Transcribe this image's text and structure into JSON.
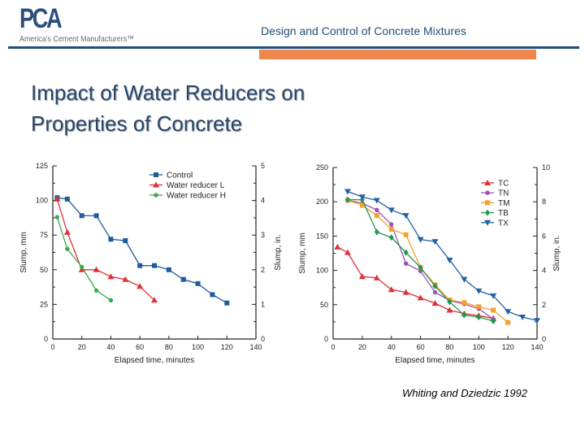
{
  "header": {
    "logo_text": "PCA",
    "logo_tagline": "America's Cement Manufacturers™",
    "title": "Design and Control of Concrete Mixtures",
    "colors": {
      "rule": "#1f4e79",
      "accent_bar": "#f0854d"
    }
  },
  "slide": {
    "title_line1": "Impact of Water Reducers on",
    "title_line2": "Properties of Concrete",
    "credit": "Whiting and Dziedzic 1992"
  },
  "chart_data": [
    {
      "type": "line",
      "xlabel": "Elapsed time, minutes",
      "ylabel": "Slump, mm",
      "y2label": "Slump, in.",
      "xlim": [
        0,
        140
      ],
      "ylim": [
        0,
        125
      ],
      "y2lim": [
        0,
        5
      ],
      "xticks": [
        "0",
        "20",
        "40",
        "60",
        "80",
        "100",
        "120",
        "140"
      ],
      "yticks": [
        "0",
        "25",
        "50",
        "75",
        "100",
        "125"
      ],
      "y2ticks": [
        "0",
        "1",
        "2",
        "3",
        "4",
        "5"
      ],
      "grid": false,
      "legend": "top-right",
      "series": [
        {
          "name": "Control",
          "color": "#1f5c9c",
          "marker": "square",
          "x": [
            3,
            10,
            20,
            30,
            40,
            50,
            60,
            70,
            80,
            90,
            100,
            110,
            120
          ],
          "y": [
            102,
            101,
            89,
            89,
            72,
            71,
            53,
            53,
            50,
            43,
            40,
            32,
            26
          ]
        },
        {
          "name": "Water reducer L",
          "color": "#e0303a",
          "marker": "triangle-up",
          "x": [
            3,
            10,
            20,
            30,
            40,
            50,
            60,
            70
          ],
          "y": [
            101,
            77,
            50,
            50,
            45,
            43,
            38,
            28
          ]
        },
        {
          "name": "Water reducer H",
          "color": "#3caa4a",
          "marker": "circle",
          "x": [
            3,
            10,
            20,
            30,
            40
          ],
          "y": [
            88,
            65,
            52,
            35,
            28
          ]
        }
      ]
    },
    {
      "type": "line",
      "xlabel": "Elapsed time, minutes",
      "ylabel": "Slump, mm",
      "y2label": "Slump, in.",
      "xlim": [
        0,
        140
      ],
      "ylim": [
        0,
        250
      ],
      "y2lim": [
        0,
        10
      ],
      "xticks": [
        "0",
        "20",
        "40",
        "60",
        "80",
        "100",
        "120",
        "140"
      ],
      "yticks": [
        "0",
        "50",
        "100",
        "150",
        "200",
        "250"
      ],
      "y2ticks": [
        "0",
        "2",
        "4",
        "6",
        "8",
        "10"
      ],
      "grid": false,
      "legend": "top-right",
      "series": [
        {
          "name": "TC",
          "color": "#e0303a",
          "marker": "triangle-up",
          "x": [
            3,
            10,
            20,
            30,
            40,
            50,
            60,
            70,
            80,
            90,
            100,
            110
          ],
          "y": [
            134,
            126,
            91,
            89,
            72,
            68,
            60,
            52,
            42,
            37,
            34,
            30
          ]
        },
        {
          "name": "TN",
          "color": "#9a52b8",
          "marker": "circle",
          "x": [
            10,
            20,
            30,
            40,
            50,
            60,
            70,
            80,
            90,
            100,
            110
          ],
          "y": [
            202,
            198,
            188,
            167,
            110,
            99,
            68,
            56,
            51,
            44,
            29
          ]
        },
        {
          "name": "TM",
          "color": "#f5a030",
          "marker": "square",
          "x": [
            10,
            20,
            30,
            40,
            50,
            60,
            70,
            80,
            90,
            100,
            110,
            120
          ],
          "y": [
            202,
            195,
            180,
            160,
            152,
            104,
            79,
            57,
            53,
            47,
            42,
            24
          ]
        },
        {
          "name": "TB",
          "color": "#1e9a50",
          "marker": "diamond",
          "x": [
            10,
            20,
            30,
            40,
            50,
            60,
            70,
            80,
            90,
            100,
            110
          ],
          "y": [
            203,
            203,
            156,
            148,
            126,
            104,
            77,
            54,
            35,
            32,
            26
          ]
        },
        {
          "name": "TX",
          "color": "#2262a4",
          "marker": "triangle-down",
          "x": [
            10,
            20,
            30,
            40,
            50,
            60,
            70,
            80,
            90,
            100,
            110,
            120,
            130,
            140
          ],
          "y": [
            215,
            207,
            202,
            188,
            180,
            145,
            142,
            115,
            87,
            70,
            63,
            40,
            32,
            27
          ]
        }
      ]
    }
  ]
}
